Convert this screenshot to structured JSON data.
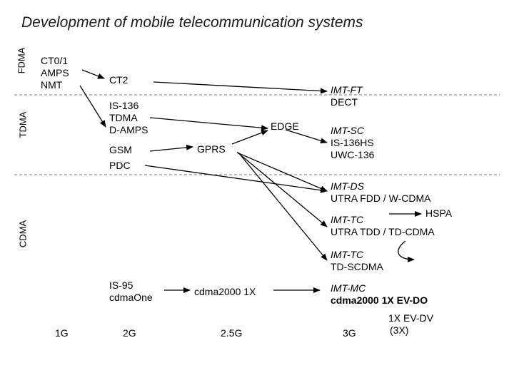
{
  "title": "Development of mobile telecommunication systems",
  "bands": [
    "FDMA",
    "TDMA",
    "CDMA"
  ],
  "generations": [
    "1G",
    "2G",
    "2.5G",
    "3G"
  ],
  "nodes": {
    "first_gen": [
      "CT0/1",
      "AMPS",
      "NMT"
    ],
    "ct2": "CT2",
    "tdma": [
      "IS-136",
      "TDMA",
      "D-AMPS"
    ],
    "gsm": "GSM",
    "pdc": "PDC",
    "edge": "EDGE",
    "gprs": "GPRS",
    "is95": [
      "IS-95",
      "cdmaOne"
    ],
    "cdma2000": "cdma2000 1X",
    "imt_ft": [
      "IMT-FT",
      "DECT"
    ],
    "imt_sc": [
      "IMT-SC",
      "IS-136HS",
      "UWC-136"
    ],
    "imt_ds": [
      "IMT-DS",
      "UTRA FDD / W-CDMA"
    ],
    "hspa": "HSPA",
    "imt_tc1": [
      "IMT-TC",
      "UTRA TDD / TD-CDMA"
    ],
    "imt_tc2": [
      "IMT-TC",
      "TD-SCDMA"
    ],
    "imt_mc": [
      "IMT-MC",
      "cdma2000 1X EV-DO"
    ],
    "evdv": [
      "1X EV-DV",
      "(3X)"
    ]
  }
}
